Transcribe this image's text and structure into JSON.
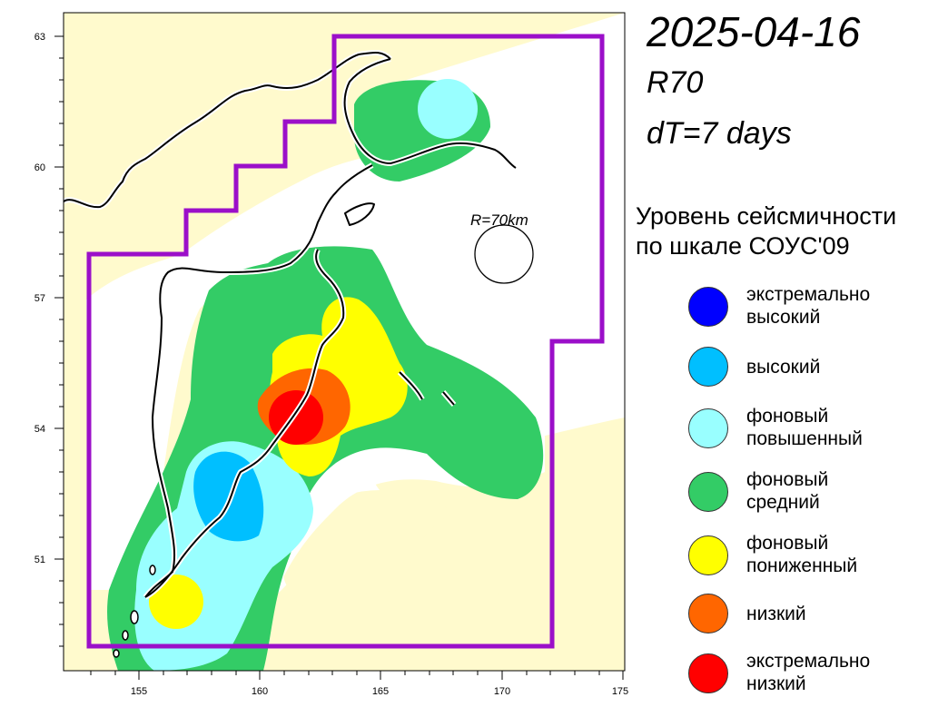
{
  "title": {
    "date": "2025-04-16",
    "region": "R70",
    "dt": "dT=7 days"
  },
  "map": {
    "lat_ticks": [
      "63",
      "60",
      "57",
      "54",
      "51"
    ],
    "lon_ticks": [
      "155",
      "160",
      "165",
      "170",
      "175"
    ],
    "radius_label": "R=70km",
    "colors": {
      "land": "#fffacd",
      "sea": "#ffffff",
      "boundary": "#9b0fc9",
      "coast": "#000000"
    }
  },
  "legend": {
    "title_line1": "Уровень сейсмичности",
    "title_line2": "по шкале СОУС'09",
    "items": [
      {
        "line1": "экстремально",
        "line2": "высокий",
        "color": "#0000ff"
      },
      {
        "line1": "высокий",
        "line2": "",
        "color": "#00bfff"
      },
      {
        "line1": "фоновый",
        "line2": "повышенный",
        "color": "#99ffff"
      },
      {
        "line1": "фоновый",
        "line2": "средний",
        "color": "#33cc66"
      },
      {
        "line1": "фоновый",
        "line2": "пониженный",
        "color": "#ffff00"
      },
      {
        "line1": "низкий",
        "line2": "",
        "color": "#ff6600"
      },
      {
        "line1": "экстремально",
        "line2": "низкий",
        "color": "#ff0000"
      }
    ]
  }
}
